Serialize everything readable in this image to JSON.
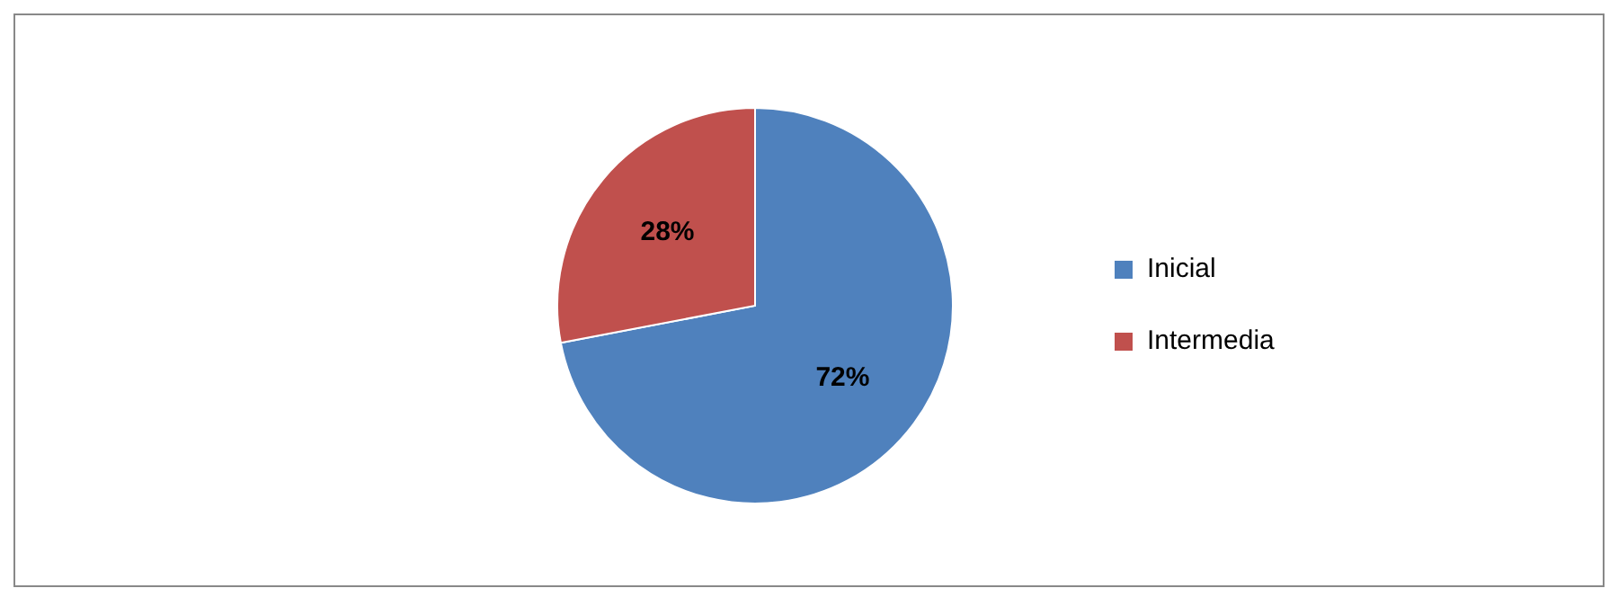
{
  "chart_data": {
    "type": "pie",
    "categories": [
      "Inicial",
      "Intermedia"
    ],
    "values": [
      72,
      28
    ],
    "colors": [
      "#4f81bd",
      "#c0504d"
    ],
    "value_labels": [
      "72%",
      "28%"
    ],
    "legend": "right"
  }
}
